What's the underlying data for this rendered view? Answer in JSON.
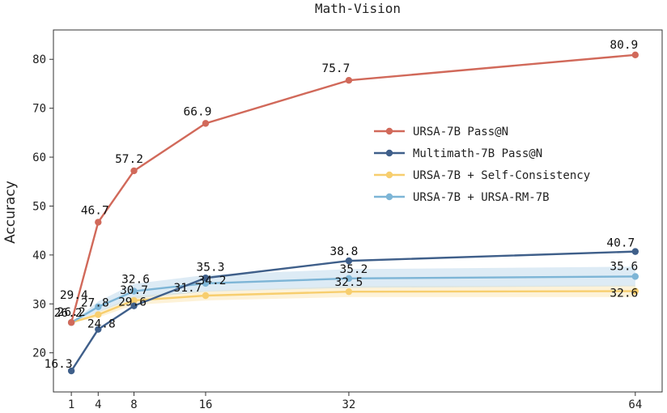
{
  "chart_data": {
    "type": "line",
    "title": "Math-Vision",
    "xlabel": "",
    "ylabel": "Accuracy",
    "x": [
      1,
      4,
      8,
      16,
      32,
      64
    ],
    "x_ticks": [
      1,
      4,
      8,
      16,
      32,
      64
    ],
    "x_tick_labels": [
      "1",
      "4",
      "8",
      "16",
      "32",
      "64"
    ],
    "ylim": [
      12,
      86
    ],
    "y_ticks": [
      20,
      30,
      40,
      50,
      60,
      70,
      80
    ],
    "y_tick_labels": [
      "20",
      "30",
      "40",
      "50",
      "60",
      "70",
      "80"
    ],
    "grid": false,
    "legend_position": "center-right",
    "series": [
      {
        "name": "URSA-7B Pass@N",
        "color": "#d1695a",
        "x": [
          1,
          4,
          8,
          16,
          32,
          64
        ],
        "values": [
          26.2,
          46.7,
          57.2,
          66.9,
          75.7,
          80.9
        ],
        "labels": [
          "26.2",
          "46.7",
          "57.2",
          "66.9",
          "75.7",
          "80.9"
        ]
      },
      {
        "name": "Multimath-7B Pass@N",
        "color": "#3f5f8a",
        "x": [
          1,
          4,
          8,
          16,
          32,
          64
        ],
        "values": [
          16.3,
          24.8,
          29.6,
          35.3,
          38.8,
          40.7
        ],
        "labels": [
          "16.3",
          "24.8",
          "29.6",
          "35.3",
          "38.8",
          "40.7"
        ]
      },
      {
        "name": "URSA-7B + Self-Consistency",
        "color": "#f7ce6e",
        "band_color": "#fbe3a8",
        "x": [
          1,
          4,
          8,
          16,
          32,
          64
        ],
        "values": [
          26.2,
          27.8,
          30.7,
          31.7,
          32.5,
          32.6
        ],
        "labels": [
          "",
          "27.8",
          "30.7",
          "31.7",
          "32.5",
          "32.6"
        ]
      },
      {
        "name": "URSA-7B + URSA-RM-7B",
        "color": "#7db5d6",
        "band_color": "#bcd8ec",
        "x": [
          1,
          4,
          8,
          16,
          32,
          64
        ],
        "values": [
          26.2,
          29.4,
          32.6,
          34.2,
          35.2,
          35.6
        ],
        "labels": [
          "",
          "29.4",
          "32.6",
          "34.2",
          "35.2",
          "35.6"
        ]
      }
    ]
  }
}
